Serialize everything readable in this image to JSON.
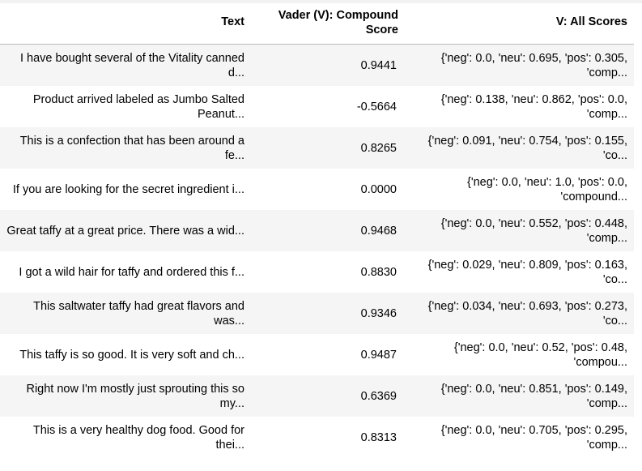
{
  "table": {
    "columns": [
      "Text",
      "Vader (V): Compound Score",
      "V: All Scores"
    ],
    "rows": [
      {
        "text": "I have bought several of the Vitality canned d...",
        "compound": "0.9441",
        "all": "{'neg': 0.0, 'neu': 0.695, 'pos': 0.305, 'comp..."
      },
      {
        "text": "Product arrived labeled as Jumbo Salted Peanut...",
        "compound": "-0.5664",
        "all": "{'neg': 0.138, 'neu': 0.862, 'pos': 0.0, 'comp..."
      },
      {
        "text": "This is a confection that has been around a fe...",
        "compound": "0.8265",
        "all": "{'neg': 0.091, 'neu': 0.754, 'pos': 0.155, 'co..."
      },
      {
        "text": "If you are looking for the secret ingredient i...",
        "compound": "0.0000",
        "all": "{'neg': 0.0, 'neu': 1.0, 'pos': 0.0, 'compound..."
      },
      {
        "text": "Great taffy at a great price. There was a wid...",
        "compound": "0.9468",
        "all": "{'neg': 0.0, 'neu': 0.552, 'pos': 0.448, 'comp..."
      },
      {
        "text": "I got a wild hair for taffy and ordered this f...",
        "compound": "0.8830",
        "all": "{'neg': 0.029, 'neu': 0.809, 'pos': 0.163, 'co..."
      },
      {
        "text": "This saltwater taffy had great flavors and was...",
        "compound": "0.9346",
        "all": "{'neg': 0.034, 'neu': 0.693, 'pos': 0.273, 'co..."
      },
      {
        "text": "This taffy is so good. It is very soft and ch...",
        "compound": "0.9487",
        "all": "{'neg': 0.0, 'neu': 0.52, 'pos': 0.48, 'compou..."
      },
      {
        "text": "Right now I'm mostly just sprouting this so my...",
        "compound": "0.6369",
        "all": "{'neg': 0.0, 'neu': 0.851, 'pos': 0.149, 'comp..."
      },
      {
        "text": "This is a very healthy dog food. Good for thei...",
        "compound": "0.8313",
        "all": "{'neg': 0.0, 'neu': 0.705, 'pos': 0.295, 'comp..."
      }
    ]
  }
}
